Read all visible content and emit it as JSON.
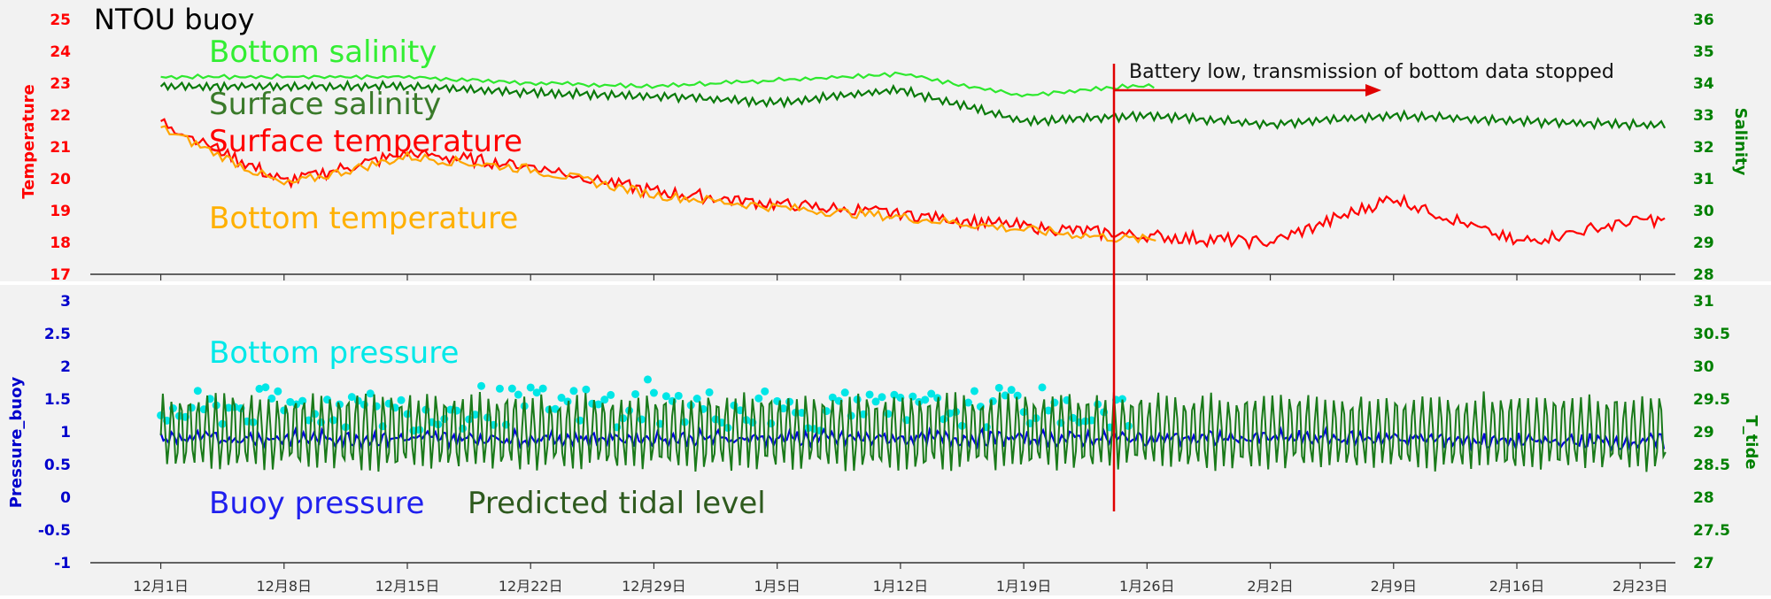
{
  "chart_data": [
    {
      "type": "line",
      "title": "NTOU buoy",
      "ylabel_left": "Temperature",
      "ylabel_right": "Salinity",
      "ylim_left": [
        17,
        25
      ],
      "ylim_right": [
        28,
        36
      ],
      "left_ticks": [
        "17",
        "18",
        "19",
        "20",
        "21",
        "22",
        "23",
        "24",
        "25"
      ],
      "right_ticks": [
        "28",
        "29",
        "30",
        "31",
        "32",
        "33",
        "34",
        "35",
        "36"
      ],
      "colors": {
        "left_axis": "#ff0000",
        "right_axis": "#008000"
      },
      "annotation": {
        "text": "Battery low, transmission of bottom data stopped",
        "x": "1/25",
        "color": "#e00000"
      },
      "series": [
        {
          "name": "Bottom salinity",
          "color": "#2ee82e",
          "axis": "right",
          "x": [
            "12/1",
            "12/8",
            "12/15",
            "12/22",
            "12/29",
            "1/5",
            "1/12",
            "1/19",
            "1/25"
          ],
          "y": [
            34.2,
            34.2,
            34.2,
            34.0,
            33.9,
            34.1,
            34.3,
            33.6,
            33.9
          ]
        },
        {
          "name": "Surface salinity",
          "color": "#0a7a0a",
          "axis": "right",
          "x": [
            "12/1",
            "12/8",
            "12/15",
            "12/22",
            "12/29",
            "1/5",
            "1/12",
            "1/19",
            "1/26",
            "2/2",
            "2/9",
            "2/16",
            "2/23"
          ],
          "y": [
            33.9,
            33.9,
            33.9,
            33.7,
            33.6,
            33.4,
            33.8,
            32.8,
            33.0,
            32.7,
            33.0,
            32.8,
            32.7
          ]
        },
        {
          "name": "Surface temperature",
          "color": "#ff0000",
          "axis": "left",
          "x": [
            "12/1",
            "12/8",
            "12/15",
            "12/22",
            "12/29",
            "1/5",
            "1/12",
            "1/19",
            "1/26",
            "2/2",
            "2/9",
            "2/16",
            "2/23"
          ],
          "y": [
            21.8,
            19.9,
            20.8,
            20.4,
            19.6,
            19.2,
            18.9,
            18.5,
            18.2,
            18.0,
            19.4,
            18.0,
            18.7
          ]
        },
        {
          "name": "Bottom temperature",
          "color": "#ffa500",
          "axis": "left",
          "x": [
            "12/1",
            "12/8",
            "12/15",
            "12/22",
            "12/29",
            "1/5",
            "1/12",
            "1/19",
            "1/25"
          ],
          "y": [
            21.6,
            19.8,
            20.7,
            20.3,
            19.5,
            19.1,
            18.8,
            18.4,
            18.1
          ]
        }
      ]
    },
    {
      "type": "line",
      "ylabel_left": "Pressure_buoy",
      "ylabel_right": "T_tide",
      "ylim_left": [
        -1,
        3
      ],
      "ylim_right": [
        27,
        31
      ],
      "left_ticks": [
        "-1",
        "-0.5",
        "0",
        "0.5",
        "1",
        "1.5",
        "2",
        "2.5",
        "3"
      ],
      "right_ticks": [
        "27",
        "27.5",
        "28",
        "28.5",
        "29",
        "29.5",
        "30",
        "30.5",
        "31"
      ],
      "colors": {
        "left_axis": "#0000cc",
        "right_axis": "#008000"
      },
      "series": [
        {
          "name": "Bottom pressure",
          "color": "#00e6e6",
          "axis": "left",
          "kind": "scatter",
          "x": [
            "12/1",
            "12/8",
            "12/15",
            "12/22",
            "12/29",
            "1/5",
            "1/12",
            "1/19",
            "1/25"
          ],
          "y": [
            1.3,
            1.4,
            1.3,
            1.4,
            1.4,
            1.3,
            1.3,
            1.4,
            1.3
          ]
        },
        {
          "name": "Buoy pressure",
          "color": "#0000dd",
          "axis": "left",
          "x": [
            "12/1",
            "12/8",
            "12/15",
            "12/22",
            "12/29",
            "1/5",
            "1/12",
            "1/19",
            "1/26",
            "2/2",
            "2/9",
            "2/16",
            "2/23"
          ],
          "y": [
            0.9,
            0.9,
            0.9,
            0.9,
            0.9,
            0.9,
            0.9,
            0.9,
            0.9,
            0.9,
            0.9,
            0.85,
            0.85
          ]
        },
        {
          "name": "Predicted tidal level",
          "color": "#1a7a1a",
          "axis": "right",
          "x": [
            "12/1",
            "12/8",
            "12/15",
            "12/22",
            "12/29",
            "1/5",
            "1/12",
            "1/19",
            "1/26",
            "2/2",
            "2/9",
            "2/16",
            "2/23"
          ],
          "y": [
            29.0,
            29.0,
            29.0,
            29.0,
            29.0,
            29.0,
            29.0,
            29.0,
            29.0,
            29.0,
            29.0,
            29.0,
            29.0
          ]
        }
      ]
    }
  ],
  "x_axis": {
    "tick_labels": [
      "12月1日",
      "12月8日",
      "12月15日",
      "12月22日",
      "12月29日",
      "1月5日",
      "1月12日",
      "1月19日",
      "1月26日",
      "2月2日",
      "2月9日",
      "2月16日",
      "2月23日"
    ]
  },
  "labels": {
    "title": "NTOU buoy",
    "bottom_salinity": "Bottom salinity",
    "surface_salinity": "Surface salinity",
    "surface_temperature": "Surface temperature",
    "bottom_temperature": "Bottom temperature",
    "bottom_pressure": "Bottom pressure",
    "buoy_pressure": "Buoy pressure",
    "predicted_tidal_level": "Predicted tidal level",
    "annotation": "Battery low, transmission of bottom data stopped",
    "temperature_axis": "Temperature",
    "salinity_axis": "Salinity",
    "pressure_axis": "Pressure_buoy",
    "tide_axis": "T_tide"
  }
}
